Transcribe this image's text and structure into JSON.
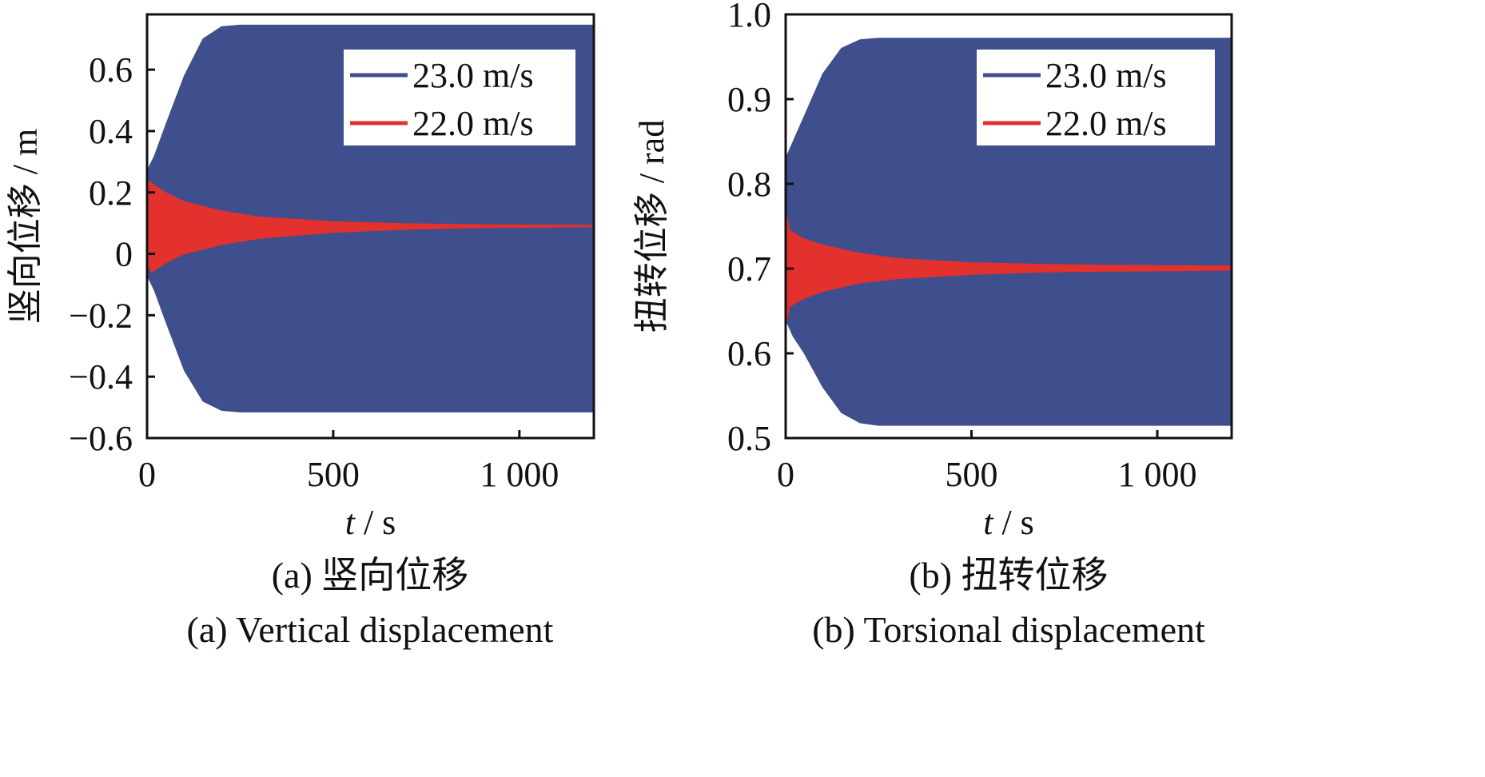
{
  "chart_data": [
    {
      "id": "a",
      "type": "area",
      "title": "",
      "caption_cn": "(a)  竖向位移",
      "caption_en": "(a)  Vertical displacement",
      "xlabel_italic": "t",
      "xlabel_rest": " / s",
      "ylabel": "竖向位移 / m",
      "xlim": [
        0,
        1200
      ],
      "ylim": [
        -0.6,
        0.78
      ],
      "xticks": [
        0,
        500,
        1000
      ],
      "xtick_labels": [
        "0",
        "500",
        "1 000"
      ],
      "yticks": [
        -0.6,
        -0.4,
        -0.2,
        0,
        0.2,
        0.4,
        0.6
      ],
      "ytick_labels": [
        "−0.6",
        "−0.4",
        "−0.2",
        "0",
        "0.2",
        "0.4",
        "0.6"
      ],
      "legend_position": "top-right",
      "series": [
        {
          "name": "23.0 m/s",
          "color": "#3f4e8c",
          "t": [
            0,
            20,
            50,
            100,
            150,
            200,
            250,
            300,
            600,
            900,
            1200
          ],
          "upper": [
            0.27,
            0.32,
            0.42,
            0.58,
            0.7,
            0.74,
            0.745,
            0.745,
            0.745,
            0.745,
            0.745
          ],
          "lower": [
            -0.07,
            -0.12,
            -0.22,
            -0.38,
            -0.48,
            -0.51,
            -0.515,
            -0.515,
            -0.515,
            -0.515,
            -0.515
          ]
        },
        {
          "name": "22.0 m/s",
          "color": "#e3312d",
          "t": [
            0,
            5,
            12,
            50,
            100,
            200,
            300,
            500,
            700,
            900,
            1200
          ],
          "upper": [
            0.2,
            0.24,
            0.23,
            0.2,
            0.17,
            0.14,
            0.12,
            0.105,
            0.098,
            0.095,
            0.093
          ],
          "lower": [
            0.0,
            -0.04,
            -0.06,
            -0.03,
            0.0,
            0.03,
            0.05,
            0.07,
            0.08,
            0.085,
            0.088
          ]
        }
      ]
    },
    {
      "id": "b",
      "type": "area",
      "title": "",
      "caption_cn": "(b)  扭转位移",
      "caption_en": "(b)  Torsional displacement",
      "xlabel_italic": "t",
      "xlabel_rest": " / s",
      "ylabel": "扭转位移 / rad",
      "xlim": [
        0,
        1200
      ],
      "ylim": [
        0.5,
        1.0
      ],
      "xticks": [
        0,
        500,
        1000
      ],
      "xtick_labels": [
        "0",
        "500",
        "1 000"
      ],
      "yticks": [
        0.5,
        0.6,
        0.7,
        0.8,
        0.9,
        1.0
      ],
      "ytick_labels": [
        "0.5",
        "0.6",
        "0.7",
        "0.8",
        "0.9",
        "1.0"
      ],
      "legend_position": "top-right",
      "series": [
        {
          "name": "23.0 m/s",
          "color": "#3f4e8c",
          "t": [
            0,
            20,
            50,
            100,
            150,
            200,
            250,
            300,
            600,
            900,
            1200
          ],
          "upper": [
            0.83,
            0.85,
            0.88,
            0.93,
            0.96,
            0.97,
            0.972,
            0.972,
            0.972,
            0.972,
            0.972
          ],
          "lower": [
            0.64,
            0.62,
            0.6,
            0.56,
            0.53,
            0.518,
            0.515,
            0.515,
            0.515,
            0.515,
            0.515
          ]
        },
        {
          "name": "22.0 m/s",
          "color": "#e3312d",
          "t": [
            0,
            4,
            10,
            50,
            100,
            200,
            300,
            500,
            700,
            900,
            1200
          ],
          "upper": [
            0.74,
            0.762,
            0.745,
            0.735,
            0.728,
            0.718,
            0.712,
            0.707,
            0.705,
            0.704,
            0.703
          ],
          "lower": [
            0.66,
            0.638,
            0.655,
            0.665,
            0.673,
            0.683,
            0.688,
            0.693,
            0.696,
            0.697,
            0.698
          ]
        }
      ]
    }
  ]
}
